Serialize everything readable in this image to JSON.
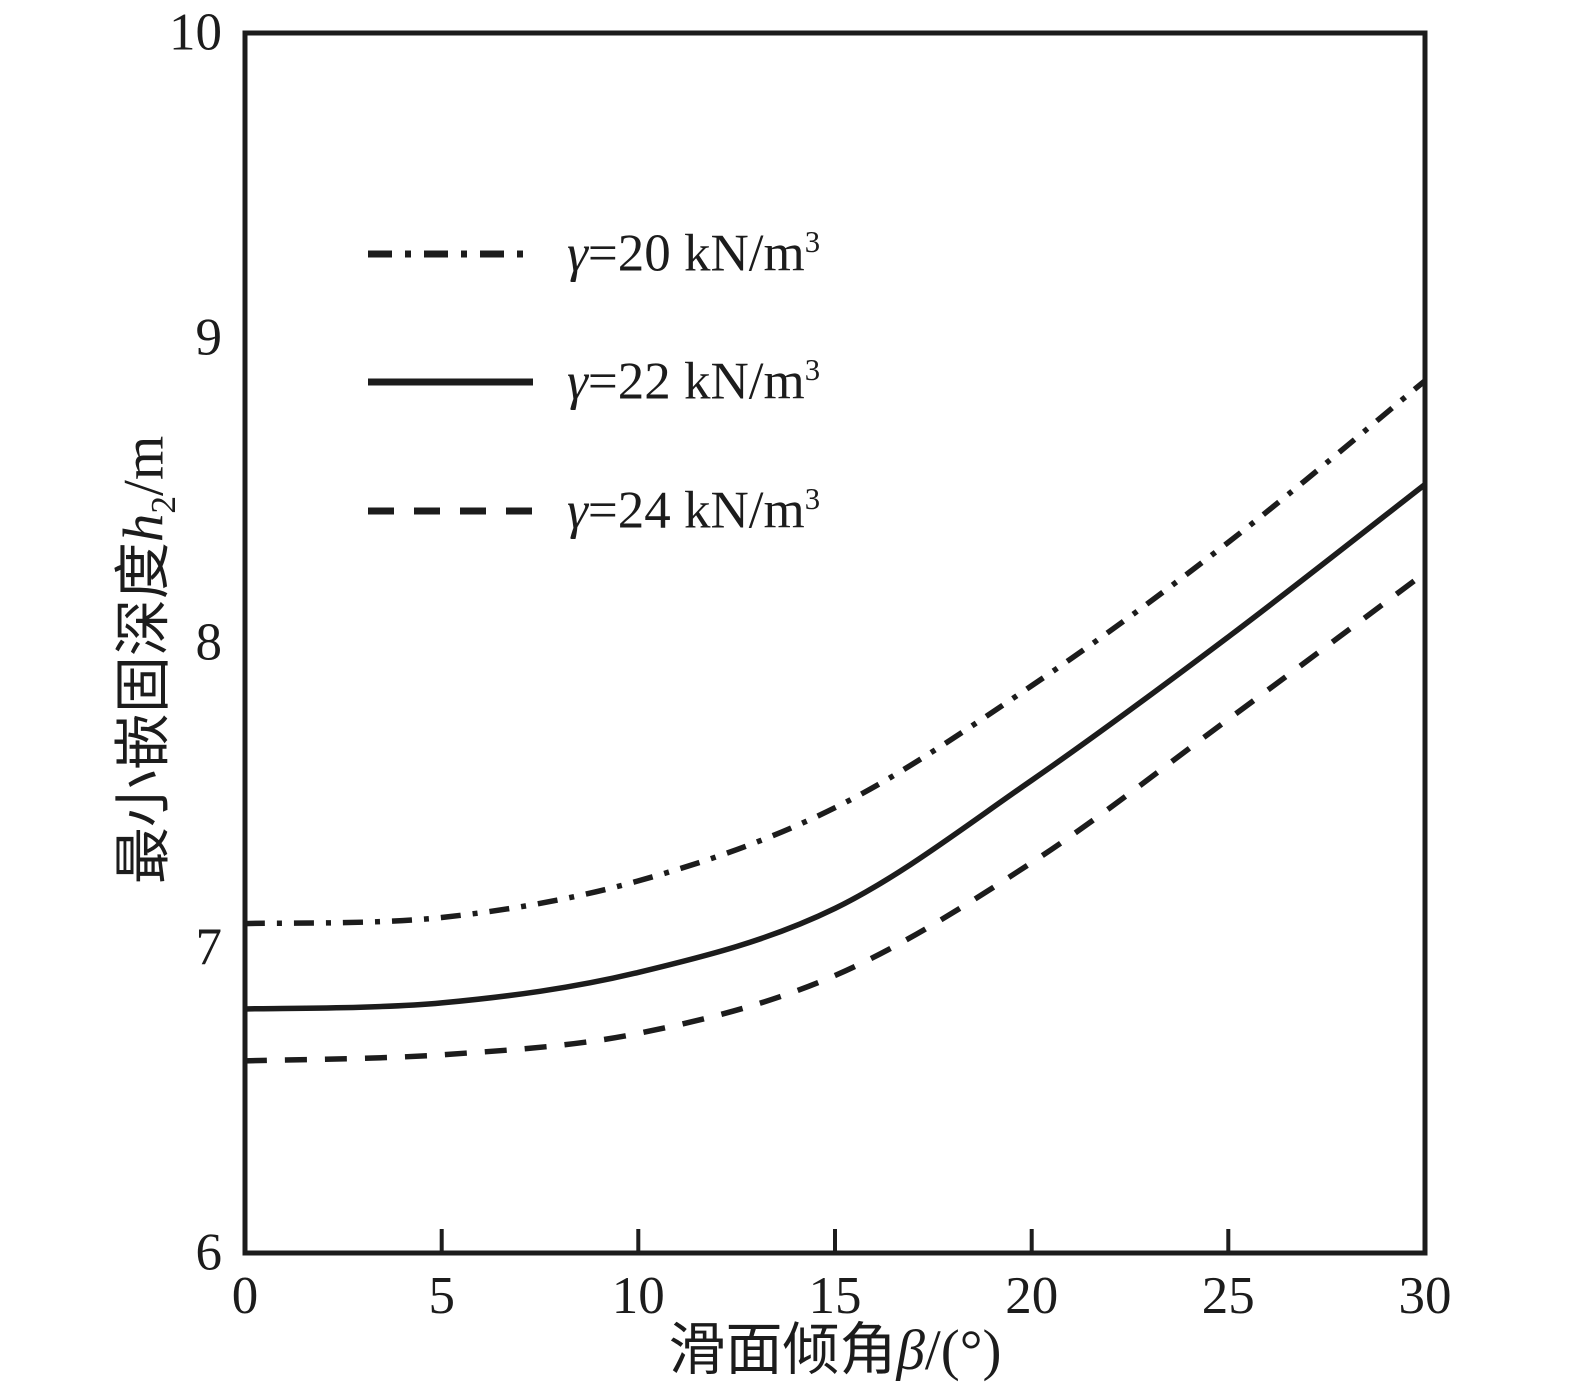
{
  "chart_data": {
    "type": "line",
    "title": "",
    "xlabel": "滑面倾角β/(°)",
    "ylabel": "最小嵌固深度h2/m",
    "xlim": [
      0,
      30
    ],
    "ylim": [
      6,
      10
    ],
    "grid": false,
    "legend_position": "inside-top-left",
    "x": [
      0,
      5,
      10,
      15,
      20,
      25,
      30
    ],
    "series": [
      {
        "name": "γ=20 kN/m³",
        "line_style": "dash-dot",
        "values": [
          7.08,
          7.1,
          7.22,
          7.46,
          7.86,
          8.33,
          8.86
        ]
      },
      {
        "name": "γ=22 kN/m³",
        "line_style": "solid",
        "values": [
          6.8,
          6.82,
          6.92,
          7.13,
          7.55,
          8.02,
          8.52
        ]
      },
      {
        "name": "γ=24 kN/m³",
        "line_style": "dashed",
        "values": [
          6.63,
          6.65,
          6.72,
          6.91,
          7.28,
          7.75,
          8.23
        ]
      }
    ],
    "line_color": "#1c1c1c"
  },
  "axes": {
    "x_ticks": [
      {
        "label": "0",
        "value": 0
      },
      {
        "label": "5",
        "value": 5
      },
      {
        "label": "10",
        "value": 10
      },
      {
        "label": "15",
        "value": 15
      },
      {
        "label": "20",
        "value": 20
      },
      {
        "label": "25",
        "value": 25
      },
      {
        "label": "30",
        "value": 30
      }
    ],
    "y_ticks": [
      {
        "label": "6",
        "value": 6
      },
      {
        "label": "7",
        "value": 7
      },
      {
        "label": "8",
        "value": 8
      },
      {
        "label": "9",
        "value": 9
      },
      {
        "label": "10",
        "value": 10
      }
    ],
    "x_title": {
      "prefix": "滑面倾角",
      "variable": "β",
      "suffix": "/(°)"
    },
    "y_title": {
      "prefix": "最小嵌固深度",
      "variable": "h",
      "subscript": "2",
      "suffix": "/m"
    }
  },
  "legend": {
    "items": [
      {
        "variable": "γ",
        "label": "=20 kN/m",
        "exponent": "3",
        "line_style": "dash-dot"
      },
      {
        "variable": "γ",
        "label": "=22 kN/m",
        "exponent": "3",
        "line_style": "solid"
      },
      {
        "variable": "γ",
        "label": "=24 kN/m",
        "exponent": "3",
        "line_style": "dashed"
      }
    ]
  },
  "colors": {
    "ink": "#1c1c1c",
    "background": "#ffffff"
  }
}
